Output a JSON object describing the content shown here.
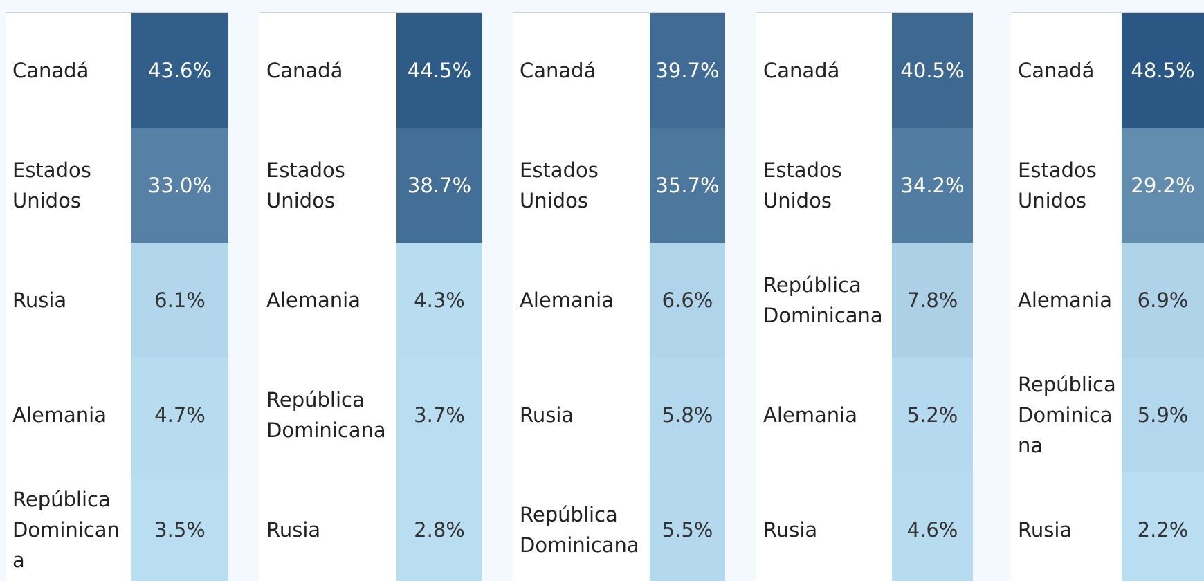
{
  "chart_data": [
    {
      "type": "highlight_table",
      "color_range": [
        "#b9ddf1",
        "#2a5783"
      ],
      "categories": [
        "Canadá",
        "Estados Unidos",
        "Rusia",
        "Alemania",
        "República Dominicana"
      ],
      "values": [
        43.6,
        33.0,
        6.1,
        4.7,
        3.5
      ],
      "value_labels": [
        "43.6%",
        "33.0%",
        "6.1%",
        "4.7%",
        "3.5%"
      ]
    },
    {
      "type": "highlight_table",
      "color_range": [
        "#b9ddf1",
        "#2a5783"
      ],
      "categories": [
        "Canadá",
        "Estados Unidos",
        "Alemania",
        "República Dominicana",
        "Rusia"
      ],
      "values": [
        44.5,
        38.7,
        4.3,
        3.7,
        2.8
      ],
      "value_labels": [
        "44.5%",
        "38.7%",
        "4.3%",
        "3.7%",
        "2.8%"
      ]
    },
    {
      "type": "highlight_table",
      "color_range": [
        "#b9ddf1",
        "#2a5783"
      ],
      "categories": [
        "Canadá",
        "Estados Unidos",
        "Alemania",
        "Rusia",
        "República Dominicana"
      ],
      "values": [
        39.7,
        35.7,
        6.6,
        5.8,
        5.5
      ],
      "value_labels": [
        "39.7%",
        "35.7%",
        "6.6%",
        "5.8%",
        "5.5%"
      ]
    },
    {
      "type": "highlight_table",
      "color_range": [
        "#b9ddf1",
        "#2a5783"
      ],
      "categories": [
        "Canadá",
        "Estados Unidos",
        "República Dominicana",
        "Alemania",
        "Rusia"
      ],
      "values": [
        40.5,
        34.2,
        7.8,
        5.2,
        4.6
      ],
      "value_labels": [
        "40.5%",
        "34.2%",
        "7.8%",
        "5.2%",
        "4.6%"
      ]
    },
    {
      "type": "highlight_table",
      "color_range": [
        "#b9ddf1",
        "#2a5783"
      ],
      "categories": [
        "Canadá",
        "Estados Unidos",
        "Alemania",
        "República Dominicana",
        "Rusia"
      ],
      "values": [
        48.5,
        29.2,
        6.9,
        5.9,
        2.2
      ],
      "value_labels": [
        "48.5%",
        "29.2%",
        "6.9%",
        "5.9%",
        "2.2%"
      ]
    }
  ]
}
